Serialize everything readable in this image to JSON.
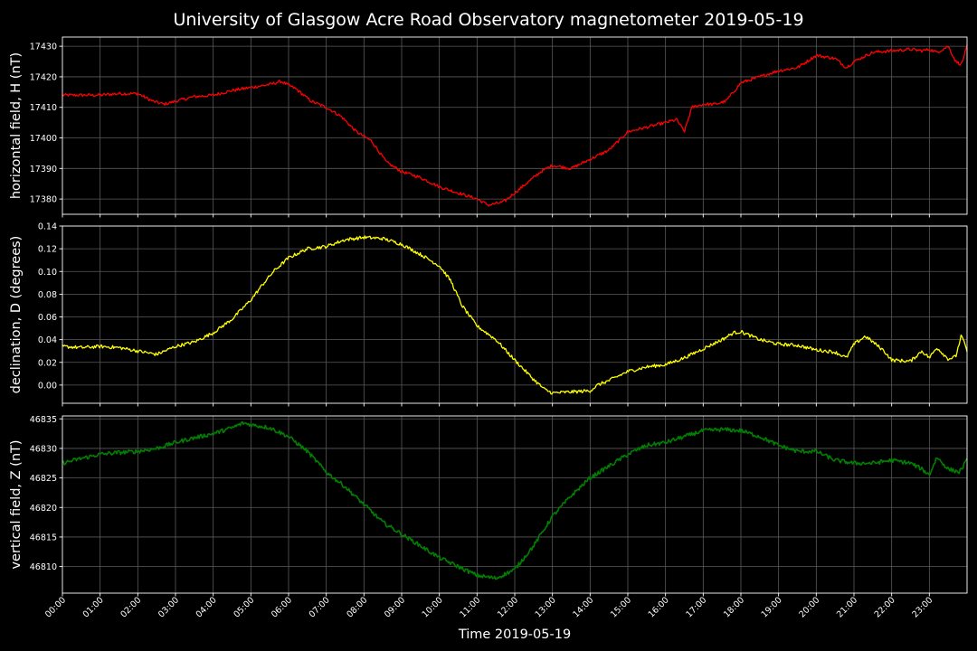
{
  "chart_data": {
    "type": "line",
    "title": "University of Glasgow Acre Road Observatory magnetometer 2019-05-19",
    "xlabel": "Time 2019-05-19",
    "x_ticks": [
      "00:00",
      "01:00",
      "02:00",
      "03:00",
      "04:00",
      "05:00",
      "06:00",
      "07:00",
      "08:00",
      "09:00",
      "10:00",
      "11:00",
      "12:00",
      "13:00",
      "14:00",
      "15:00",
      "16:00",
      "17:00",
      "18:00",
      "19:00",
      "20:00",
      "21:00",
      "22:00",
      "23:00"
    ],
    "xlim_hours": [
      0,
      24
    ],
    "grid": true,
    "panels": [
      {
        "name": "H",
        "ylabel": "horizontal field, H (nT)",
        "color": "#ff0000",
        "ylim": [
          17375,
          17433
        ],
        "yticks": [
          17380,
          17390,
          17400,
          17410,
          17420,
          17430
        ],
        "ytick_labels": [
          "17380",
          "17390",
          "17400",
          "17410",
          "17420",
          "17430"
        ],
        "noise": 0.5,
        "x": [
          0,
          0.5,
          1.0,
          1.5,
          2.0,
          2.4,
          2.7,
          3.0,
          3.5,
          4.0,
          4.5,
          5.0,
          5.5,
          5.8,
          6.2,
          6.6,
          7.0,
          7.4,
          7.8,
          8.2,
          8.6,
          9.0,
          9.5,
          10.0,
          10.5,
          11.0,
          11.3,
          11.7,
          12.0,
          12.3,
          12.7,
          13.0,
          13.5,
          14.0,
          14.5,
          15.0,
          15.5,
          16.0,
          16.3,
          16.5,
          16.7,
          17.0,
          17.3,
          17.6,
          18.0,
          18.5,
          19.0,
          19.5,
          20.0,
          20.5,
          20.8,
          21.0,
          21.5,
          22.0,
          22.5,
          22.8,
          23.0,
          23.2,
          23.5,
          23.7,
          23.85,
          24.0
        ],
        "y": [
          17414,
          17414,
          17414,
          17414.5,
          17414.5,
          17412,
          17411,
          17412,
          17413.5,
          17414,
          17415.5,
          17416.5,
          17417.5,
          17418.5,
          17416,
          17412,
          17410,
          17407,
          17402,
          17399,
          17392,
          17389,
          17387,
          17384,
          17382,
          17380,
          17378,
          17379,
          17382,
          17385,
          17389,
          17391,
          17390,
          17393,
          17396,
          17402,
          17403.5,
          17405,
          17406,
          17402,
          17410,
          17411,
          17411,
          17412,
          17418,
          17420,
          17422,
          17423,
          17427,
          17426,
          17423,
          17425,
          17428,
          17428.5,
          17429,
          17428.5,
          17429,
          17428,
          17430,
          17425,
          17424,
          17430
        ]
      },
      {
        "name": "D",
        "ylabel": "declination, D (degrees)",
        "color": "#ffff00",
        "ylim": [
          -0.016,
          0.14
        ],
        "yticks": [
          0.0,
          0.02,
          0.04,
          0.06,
          0.08,
          0.1,
          0.12,
          0.14
        ],
        "ytick_labels": [
          "0.00",
          "0.02",
          "0.04",
          "0.06",
          "0.08",
          "0.10",
          "0.12",
          "0.14"
        ],
        "noise": 0.0015,
        "x": [
          0,
          0.5,
          1.0,
          1.5,
          2.0,
          2.5,
          3.0,
          3.5,
          4.0,
          4.5,
          5.0,
          5.3,
          5.6,
          6.0,
          6.5,
          7.0,
          7.5,
          8.0,
          8.5,
          9.0,
          9.5,
          10.0,
          10.3,
          10.6,
          11.0,
          11.5,
          12.0,
          12.5,
          12.8,
          13.0,
          13.5,
          14.0,
          14.2,
          14.5,
          15.0,
          15.5,
          16.0,
          16.5,
          17.0,
          17.5,
          17.8,
          18.0,
          18.5,
          19.0,
          19.5,
          20.0,
          20.5,
          20.8,
          21.0,
          21.3,
          21.5,
          21.8,
          22.0,
          22.5,
          22.8,
          23.0,
          23.2,
          23.5,
          23.7,
          23.85,
          24.0
        ],
        "y": [
          0.034,
          0.033,
          0.034,
          0.033,
          0.03,
          0.027,
          0.034,
          0.038,
          0.046,
          0.058,
          0.075,
          0.088,
          0.1,
          0.112,
          0.12,
          0.122,
          0.128,
          0.13,
          0.129,
          0.124,
          0.115,
          0.105,
          0.092,
          0.07,
          0.052,
          0.04,
          0.022,
          0.005,
          -0.004,
          -0.007,
          -0.006,
          -0.005,
          0.0,
          0.004,
          0.012,
          0.016,
          0.018,
          0.024,
          0.032,
          0.04,
          0.046,
          0.047,
          0.04,
          0.036,
          0.035,
          0.031,
          0.029,
          0.024,
          0.036,
          0.043,
          0.038,
          0.03,
          0.022,
          0.021,
          0.03,
          0.024,
          0.033,
          0.023,
          0.025,
          0.044,
          0.03
        ]
      },
      {
        "name": "Z",
        "ylabel": "vertical field, Z (nT)",
        "color": "#008000",
        "ylim": [
          46805.5,
          46835.5
        ],
        "yticks": [
          46810,
          46815,
          46820,
          46825,
          46830,
          46835
        ],
        "ytick_labels": [
          "46810",
          "46815",
          "46820",
          "46825",
          "46830",
          "46835"
        ],
        "noise": 0.35,
        "x": [
          0,
          0.5,
          1.0,
          1.5,
          2.0,
          2.5,
          3.0,
          3.5,
          4.0,
          4.5,
          4.8,
          5.0,
          5.5,
          6.0,
          6.5,
          7.0,
          7.5,
          8.0,
          8.5,
          9.0,
          9.5,
          10.0,
          10.5,
          11.0,
          11.5,
          12.0,
          12.5,
          13.0,
          13.5,
          14.0,
          14.5,
          15.0,
          15.5,
          16.0,
          16.5,
          17.0,
          17.5,
          18.0,
          18.5,
          19.0,
          19.5,
          20.0,
          20.5,
          21.0,
          21.5,
          22.0,
          22.5,
          22.8,
          23.0,
          23.2,
          23.5,
          23.8,
          24.0
        ],
        "y": [
          46827.5,
          46828.3,
          46829.0,
          46829.3,
          46829.5,
          46830.0,
          46831.0,
          46831.8,
          46832.5,
          46833.5,
          46834.3,
          46834.0,
          46833.5,
          46832.0,
          46829.5,
          46826.0,
          46823.5,
          46820.5,
          46817.5,
          46815.5,
          46813.5,
          46811.5,
          46810.0,
          46808.5,
          46808.0,
          46809.5,
          46813.5,
          46818.5,
          46822.0,
          46825.0,
          46827.0,
          46829.0,
          46830.5,
          46831.0,
          46832.0,
          46833.0,
          46833.2,
          46833.0,
          46832.0,
          46830.5,
          46829.5,
          46829.5,
          46828.0,
          46827.5,
          46827.5,
          46828.0,
          46827.5,
          46826.5,
          46825.5,
          46828.5,
          46826.5,
          46826.0,
          46828.0
        ]
      }
    ]
  }
}
